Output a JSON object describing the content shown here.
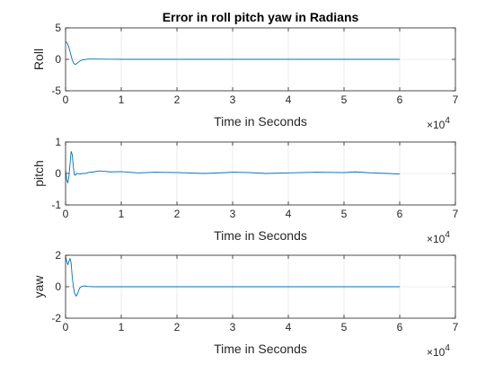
{
  "figure": {
    "title": "Error in roll pitch yaw in Radians"
  },
  "chart_data": [
    {
      "type": "line",
      "title": "Error in roll pitch yaw in Radians",
      "xlabel": "Time in Seconds",
      "ylabel": "Roll",
      "x_multiplier": "10^4",
      "xlim": [
        0,
        7
      ],
      "ylim": [
        -5,
        5
      ],
      "xticks": [
        0,
        1,
        2,
        3,
        4,
        5,
        6,
        7
      ],
      "yticks": [
        -5,
        0,
        5
      ],
      "grid": true,
      "color": "#0072BD",
      "series": [
        {
          "x": [
            0,
            0.03,
            0.06,
            0.09,
            0.12,
            0.15,
            0.18,
            0.21,
            0.25,
            0.3,
            0.4,
            0.5,
            0.7,
            1,
            1.5,
            2,
            3,
            4,
            5,
            6
          ],
          "y": [
            2.8,
            2.6,
            1.9,
            0.9,
            -0.1,
            -0.7,
            -0.8,
            -0.6,
            -0.3,
            -0.1,
            0.05,
            0.05,
            0.02,
            0.0,
            0.0,
            0.0,
            0.0,
            0.0,
            0.0,
            0.0
          ]
        }
      ]
    },
    {
      "type": "line",
      "title": "",
      "xlabel": "Time in Seconds",
      "ylabel": "pitch",
      "x_multiplier": "10^4",
      "xlim": [
        0,
        7
      ],
      "ylim": [
        -1,
        1
      ],
      "xticks": [
        0,
        1,
        2,
        3,
        4,
        5,
        6,
        7
      ],
      "yticks": [
        -1,
        0,
        1
      ],
      "grid": true,
      "color": "#0072BD",
      "series": [
        {
          "x": [
            0,
            0.02,
            0.04,
            0.06,
            0.08,
            0.1,
            0.12,
            0.14,
            0.16,
            0.18,
            0.2,
            0.22,
            0.25,
            0.3,
            0.35,
            0.4,
            0.5,
            0.6,
            0.7,
            0.8,
            1.0,
            1.3,
            1.6,
            2.0,
            2.5,
            3.0,
            3.3,
            3.6,
            4.0,
            4.5,
            5.0,
            5.2,
            5.5,
            5.8,
            6.0
          ],
          "y": [
            0.1,
            -0.2,
            -0.3,
            -0.1,
            0.3,
            0.7,
            0.6,
            0.2,
            -0.05,
            -0.05,
            0.0,
            0.0,
            -0.02,
            0.0,
            0.0,
            0.03,
            0.05,
            0.08,
            0.07,
            0.05,
            0.06,
            0.02,
            0.04,
            0.03,
            0.0,
            0.04,
            0.03,
            0.0,
            0.02,
            0.04,
            0.03,
            0.05,
            0.02,
            0.0,
            -0.02
          ]
        }
      ]
    },
    {
      "type": "line",
      "title": "",
      "xlabel": "Time in Seconds",
      "ylabel": "yaw",
      "x_multiplier": "10^4",
      "xlim": [
        0,
        7
      ],
      "ylim": [
        -2,
        2
      ],
      "xticks": [
        0,
        1,
        2,
        3,
        4,
        5,
        6,
        7
      ],
      "yticks": [
        -2,
        0,
        2
      ],
      "grid": true,
      "color": "#0072BD",
      "series": [
        {
          "x": [
            0,
            0.04,
            0.08,
            0.1,
            0.12,
            0.14,
            0.16,
            0.19,
            0.22,
            0.25,
            0.28,
            0.32,
            0.36,
            0.4,
            0.5,
            0.6,
            0.8,
            1.0,
            1.5,
            2,
            3,
            4,
            5,
            6
          ],
          "y": [
            1.9,
            1.4,
            1.8,
            1.5,
            0.6,
            0.0,
            -0.4,
            -0.6,
            -0.4,
            -0.1,
            0.0,
            0.05,
            0.05,
            0.02,
            0.0,
            0.0,
            0.0,
            0.0,
            0.0,
            0.0,
            0.0,
            0.0,
            0.0,
            0.0
          ]
        }
      ]
    }
  ]
}
